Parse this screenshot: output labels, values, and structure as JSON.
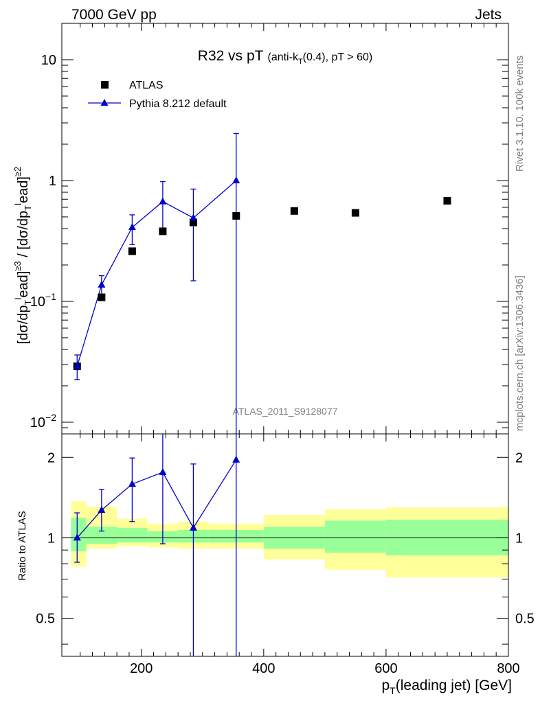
{
  "header": {
    "left": "7000 GeV pp",
    "right": "Jets"
  },
  "title": {
    "main": "R32 vs pT",
    "sub_pre": "(anti-k",
    "sub_sub": "T",
    "sub_post": "(0.4), pT > 60)"
  },
  "side": {
    "rivet": "Rivet 3.1.10,  100k events",
    "mcplots": "mcplots.cern.ch [arXiv:1306.3436]"
  },
  "watermark": "ATLAS_2011_S9128077",
  "legend": {
    "data": "ATLAS",
    "mc": "Pythia 8.212 default"
  },
  "labels": {
    "ylabel_top": "[dσ/dp_T^lead]^{≥3} / [dσ/dp_T^lead]^{≥2}",
    "ylabel_bottom": "Ratio to ATLAS",
    "xlabel": "p_T(leading jet) [GeV]"
  },
  "chart_data": [
    {
      "type": "scatter",
      "panel": "main",
      "yscale": "log",
      "xlim": [
        70,
        800
      ],
      "ylim": [
        0.008,
        20
      ],
      "y_ticks": [
        "10^-2",
        "10^-1",
        "1",
        "10"
      ],
      "x_ticks": [
        "200",
        "400",
        "600",
        "800"
      ],
      "series": [
        {
          "name": "ATLAS",
          "marker": "square",
          "color": "#000000",
          "x": [
            95,
            135,
            185,
            235,
            285,
            355,
            450,
            550,
            700
          ],
          "y": [
            0.029,
            0.108,
            0.26,
            0.38,
            0.45,
            0.51,
            0.56,
            0.54,
            0.68
          ]
        },
        {
          "name": "Pythia 8.212 default",
          "marker": "triangle",
          "color": "#0000cc",
          "x": [
            95,
            135,
            185,
            235,
            285,
            355
          ],
          "y": [
            0.029,
            0.137,
            0.41,
            0.67,
            0.49,
            1.0
          ],
          "y_low": [
            0.0225,
            0.113,
            0.295,
            0.4,
            0.148,
            0.0008
          ],
          "y_high": [
            0.036,
            0.163,
            0.52,
            0.98,
            0.85,
            2.45
          ]
        }
      ]
    },
    {
      "type": "line",
      "panel": "ratio",
      "yscale": "log",
      "xlim": [
        70,
        800
      ],
      "ylim": [
        0.36,
        2.45
      ],
      "y_ticks": [
        "0.5",
        "1",
        "2"
      ],
      "reference_line": 1,
      "bands": [
        {
          "x0": 85,
          "x1": 110,
          "inner": [
            0.89,
            1.19
          ],
          "outer": [
            0.78,
            1.37
          ]
        },
        {
          "x0": 110,
          "x1": 160,
          "inner": [
            0.95,
            1.1
          ],
          "outer": [
            0.91,
            1.31
          ]
        },
        {
          "x0": 160,
          "x1": 210,
          "inner": [
            0.96,
            1.09
          ],
          "outer": [
            0.93,
            1.18
          ]
        },
        {
          "x0": 210,
          "x1": 260,
          "inner": [
            0.96,
            1.06
          ],
          "outer": [
            0.92,
            1.13
          ]
        },
        {
          "x0": 260,
          "x1": 310,
          "inner": [
            0.96,
            1.07
          ],
          "outer": [
            0.91,
            1.15
          ]
        },
        {
          "x0": 310,
          "x1": 400,
          "inner": [
            0.96,
            1.07
          ],
          "outer": [
            0.91,
            1.13
          ]
        },
        {
          "x0": 400,
          "x1": 500,
          "inner": [
            0.91,
            1.1
          ],
          "outer": [
            0.83,
            1.22
          ]
        },
        {
          "x0": 500,
          "x1": 600,
          "inner": [
            0.88,
            1.16
          ],
          "outer": [
            0.76,
            1.28
          ]
        },
        {
          "x0": 600,
          "x1": 800,
          "inner": [
            0.86,
            1.17
          ],
          "outer": [
            0.71,
            1.3
          ]
        }
      ],
      "series": [
        {
          "name": "Pythia 8.212 default",
          "color": "#0000cc",
          "x": [
            95,
            135,
            185,
            235,
            285,
            355
          ],
          "y": [
            1.0,
            1.27,
            1.59,
            1.76,
            1.09,
            1.96
          ],
          "y_low": [
            0.81,
            1.06,
            1.15,
            0.95,
            0.36,
            0.36
          ],
          "y_high": [
            1.24,
            1.52,
            1.99,
            2.45,
            1.89,
            2.45
          ]
        }
      ]
    }
  ],
  "colors": {
    "outer_band": "#ffff99",
    "inner_band": "#99ff99",
    "mc": "#0000cc",
    "data": "#000000"
  }
}
